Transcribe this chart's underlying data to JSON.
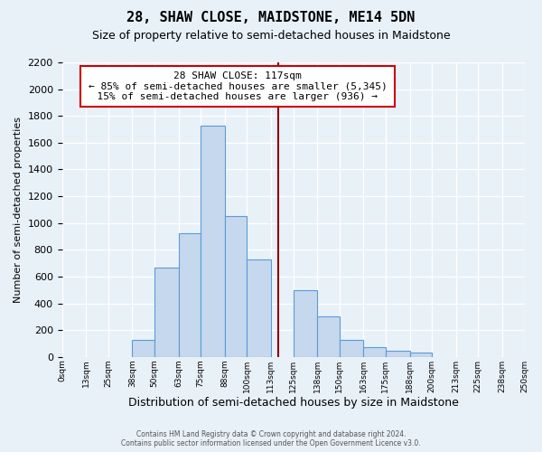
{
  "title": "28, SHAW CLOSE, MAIDSTONE, ME14 5DN",
  "subtitle": "Size of property relative to semi-detached houses in Maidstone",
  "xlabel": "Distribution of semi-detached houses by size in Maidstone",
  "ylabel": "Number of semi-detached properties",
  "footer_lines": [
    "Contains HM Land Registry data © Crown copyright and database right 2024.",
    "Contains public sector information licensed under the Open Government Licence v3.0."
  ],
  "bin_labels": [
    "0sqm",
    "13sqm",
    "25sqm",
    "38sqm",
    "50sqm",
    "63sqm",
    "75sqm",
    "88sqm",
    "100sqm",
    "113sqm",
    "125sqm",
    "138sqm",
    "150sqm",
    "163sqm",
    "175sqm",
    "188sqm",
    "200sqm",
    "213sqm",
    "225sqm",
    "238sqm",
    "250sqm"
  ],
  "bin_edges": [
    0,
    13,
    25,
    38,
    50,
    63,
    75,
    88,
    100,
    113,
    125,
    138,
    150,
    163,
    175,
    188,
    200,
    213,
    225,
    238,
    250
  ],
  "bar_heights": [
    0,
    0,
    0,
    125,
    665,
    925,
    1725,
    1055,
    730,
    0,
    500,
    305,
    125,
    70,
    45,
    30,
    0,
    0,
    0,
    0
  ],
  "bar_color": "#c5d8ed",
  "bar_edge_color": "#5b9bd5",
  "property_line_x": 117,
  "property_line_color": "#8b0000",
  "annotation_title": "28 SHAW CLOSE: 117sqm",
  "annotation_line1": "← 85% of semi-detached houses are smaller (5,345)",
  "annotation_line2": "15% of semi-detached houses are larger (936) →",
  "annotation_box_color": "#ffffff",
  "annotation_box_edge_color": "#cc0000",
  "ylim": [
    0,
    2200
  ],
  "yticks": [
    0,
    200,
    400,
    600,
    800,
    1000,
    1200,
    1400,
    1600,
    1800,
    2000,
    2200
  ],
  "bg_color": "#e8f0f8",
  "plot_bg_color": "#e8f0f8",
  "grid_color": "#ffffff",
  "title_fontsize": 11,
  "subtitle_fontsize": 9
}
